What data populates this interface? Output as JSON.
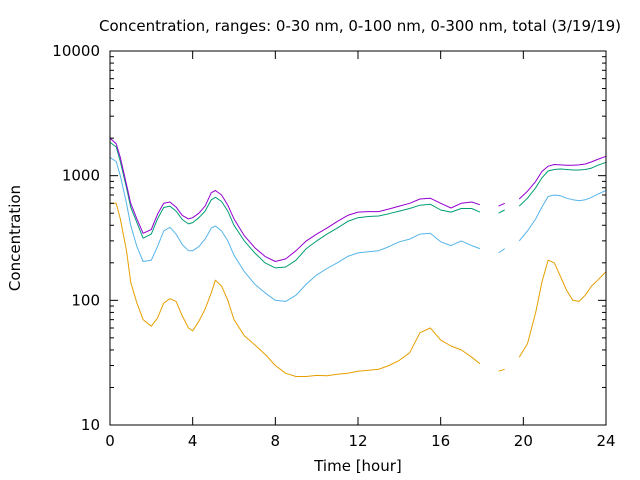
{
  "chart_data": {
    "type": "line",
    "title": "Concentration, ranges: 0-30 nm, 0-100 nm, 0-300 nm, total (3/19/19)",
    "xlabel": "Time [hour]",
    "ylabel": "Concentration",
    "xlim": [
      0,
      24
    ],
    "ylim": [
      10,
      10000
    ],
    "yscale": "log",
    "grid": false,
    "x_ticks": [
      "0",
      "4",
      "8",
      "12",
      "16",
      "20",
      "24"
    ],
    "x_tick_values": [
      0,
      4,
      8,
      12,
      16,
      20,
      24
    ],
    "y_ticks": [
      "10",
      "100",
      "1000",
      "10000"
    ],
    "y_tick_values": [
      10,
      100,
      1000,
      10000
    ],
    "series": [
      {
        "color": "#e69f00",
        "x": [
          0,
          0.3,
          0.5,
          0.8,
          1.0,
          1.3,
          1.6,
          2.0,
          2.3,
          2.6,
          2.9,
          3.2,
          3.5,
          3.8,
          4.0,
          4.3,
          4.6,
          4.9,
          5.1,
          5.4,
          5.7,
          6.0,
          6.5,
          7.0,
          7.5,
          8.0,
          8.5,
          9.0,
          9.5,
          10.0,
          10.5,
          11.0,
          11.5,
          12.0,
          12.5,
          13.0,
          13.5,
          14.0,
          14.5,
          15.0,
          15.5,
          16.0,
          16.5,
          17.0,
          17.5,
          17.9,
          18.4,
          18.8,
          19.1,
          19.4,
          19.8,
          20.2,
          20.6,
          20.9,
          21.2,
          21.5,
          21.8,
          22.1,
          22.4,
          22.7,
          23.0,
          23.3,
          23.6,
          24.0
        ],
        "y": [
          600,
          600,
          450,
          250,
          140,
          95,
          70,
          62,
          72,
          95,
          103,
          98,
          75,
          60,
          57,
          68,
          85,
          115,
          145,
          130,
          100,
          70,
          52,
          44,
          37,
          30,
          26,
          24.5,
          24.5,
          25,
          24.8,
          25.5,
          26,
          27,
          27.5,
          28,
          30,
          33,
          38,
          55,
          60,
          48,
          43,
          40,
          35,
          31,
          null,
          27,
          28,
          null,
          35,
          45,
          80,
          140,
          210,
          200,
          155,
          120,
          100,
          98,
          110,
          130,
          145,
          170
        ]
      },
      {
        "color": "#56b4e9",
        "x": [
          0,
          0.3,
          0.5,
          0.8,
          1.0,
          1.3,
          1.6,
          2.0,
          2.3,
          2.6,
          2.9,
          3.2,
          3.5,
          3.8,
          4.0,
          4.3,
          4.6,
          4.9,
          5.1,
          5.4,
          5.7,
          6.0,
          6.5,
          7.0,
          7.5,
          8.0,
          8.5,
          9.0,
          9.5,
          10.0,
          10.5,
          11.0,
          11.5,
          12.0,
          12.5,
          13.0,
          13.5,
          14.0,
          14.5,
          15.0,
          15.5,
          16.0,
          16.5,
          17.0,
          17.5,
          17.9,
          18.4,
          18.8,
          19.1,
          19.4,
          19.8,
          20.2,
          20.6,
          20.9,
          21.2,
          21.5,
          21.8,
          22.1,
          22.4,
          22.7,
          23.0,
          23.3,
          23.6,
          24.0
        ],
        "y": [
          1400,
          1300,
          1000,
          600,
          400,
          270,
          205,
          210,
          270,
          360,
          385,
          340,
          280,
          250,
          250,
          270,
          310,
          380,
          395,
          360,
          300,
          230,
          170,
          135,
          115,
          100,
          98,
          110,
          135,
          160,
          180,
          200,
          225,
          240,
          245,
          250,
          270,
          295,
          310,
          340,
          345,
          295,
          275,
          300,
          275,
          260,
          null,
          240,
          260,
          null,
          300,
          360,
          450,
          560,
          680,
          700,
          690,
          660,
          640,
          630,
          640,
          670,
          710,
          760
        ]
      },
      {
        "color": "#009e73",
        "x": [
          0,
          0.3,
          0.5,
          0.8,
          1.0,
          1.3,
          1.6,
          2.0,
          2.3,
          2.6,
          2.9,
          3.2,
          3.5,
          3.8,
          4.0,
          4.3,
          4.6,
          4.9,
          5.1,
          5.4,
          5.7,
          6.0,
          6.5,
          7.0,
          7.5,
          8.0,
          8.5,
          9.0,
          9.5,
          10.0,
          10.5,
          11.0,
          11.5,
          12.0,
          12.5,
          13.0,
          13.5,
          14.0,
          14.5,
          15.0,
          15.5,
          16.0,
          16.5,
          17.0,
          17.5,
          17.9,
          18.4,
          18.8,
          19.1,
          19.4,
          19.8,
          20.2,
          20.6,
          20.9,
          21.2,
          21.5,
          21.8,
          22.1,
          22.4,
          22.7,
          23.0,
          23.3,
          23.6,
          24.0
        ],
        "y": [
          1850,
          1700,
          1300,
          800,
          560,
          420,
          315,
          340,
          450,
          555,
          570,
          520,
          445,
          410,
          420,
          460,
          520,
          640,
          670,
          620,
          520,
          400,
          300,
          240,
          200,
          182,
          185,
          210,
          260,
          300,
          340,
          380,
          430,
          460,
          470,
          475,
          495,
          520,
          545,
          580,
          590,
          530,
          510,
          545,
          545,
          510,
          null,
          500,
          530,
          null,
          570,
          660,
          800,
          960,
          1090,
          1120,
          1130,
          1120,
          1110,
          1110,
          1120,
          1150,
          1210,
          1280
        ]
      },
      {
        "color": "#9400d3",
        "x": [
          0,
          0.3,
          0.5,
          0.8,
          1.0,
          1.3,
          1.6,
          2.0,
          2.3,
          2.6,
          2.9,
          3.2,
          3.5,
          3.8,
          4.0,
          4.3,
          4.6,
          4.9,
          5.1,
          5.4,
          5.7,
          6.0,
          6.5,
          7.0,
          7.5,
          8.0,
          8.5,
          9.0,
          9.5,
          10.0,
          10.5,
          11.0,
          11.5,
          12.0,
          12.5,
          13.0,
          13.5,
          14.0,
          14.5,
          15.0,
          15.5,
          16.0,
          16.5,
          17.0,
          17.5,
          17.9,
          18.4,
          18.8,
          19.1,
          19.4,
          19.8,
          20.2,
          20.6,
          20.9,
          21.2,
          21.5,
          21.8,
          22.1,
          22.4,
          22.7,
          23.0,
          23.3,
          23.6,
          24.0
        ],
        "y": [
          2000,
          1800,
          1400,
          850,
          600,
          450,
          345,
          370,
          490,
          600,
          615,
          560,
          480,
          450,
          460,
          500,
          570,
          730,
          760,
          700,
          580,
          450,
          330,
          265,
          225,
          205,
          215,
          250,
          300,
          340,
          380,
          430,
          480,
          510,
          515,
          515,
          540,
          570,
          600,
          650,
          660,
          600,
          550,
          600,
          615,
          585,
          null,
          570,
          600,
          null,
          650,
          750,
          900,
          1080,
          1190,
          1230,
          1220,
          1210,
          1210,
          1220,
          1240,
          1290,
          1350,
          1430
        ]
      }
    ]
  }
}
